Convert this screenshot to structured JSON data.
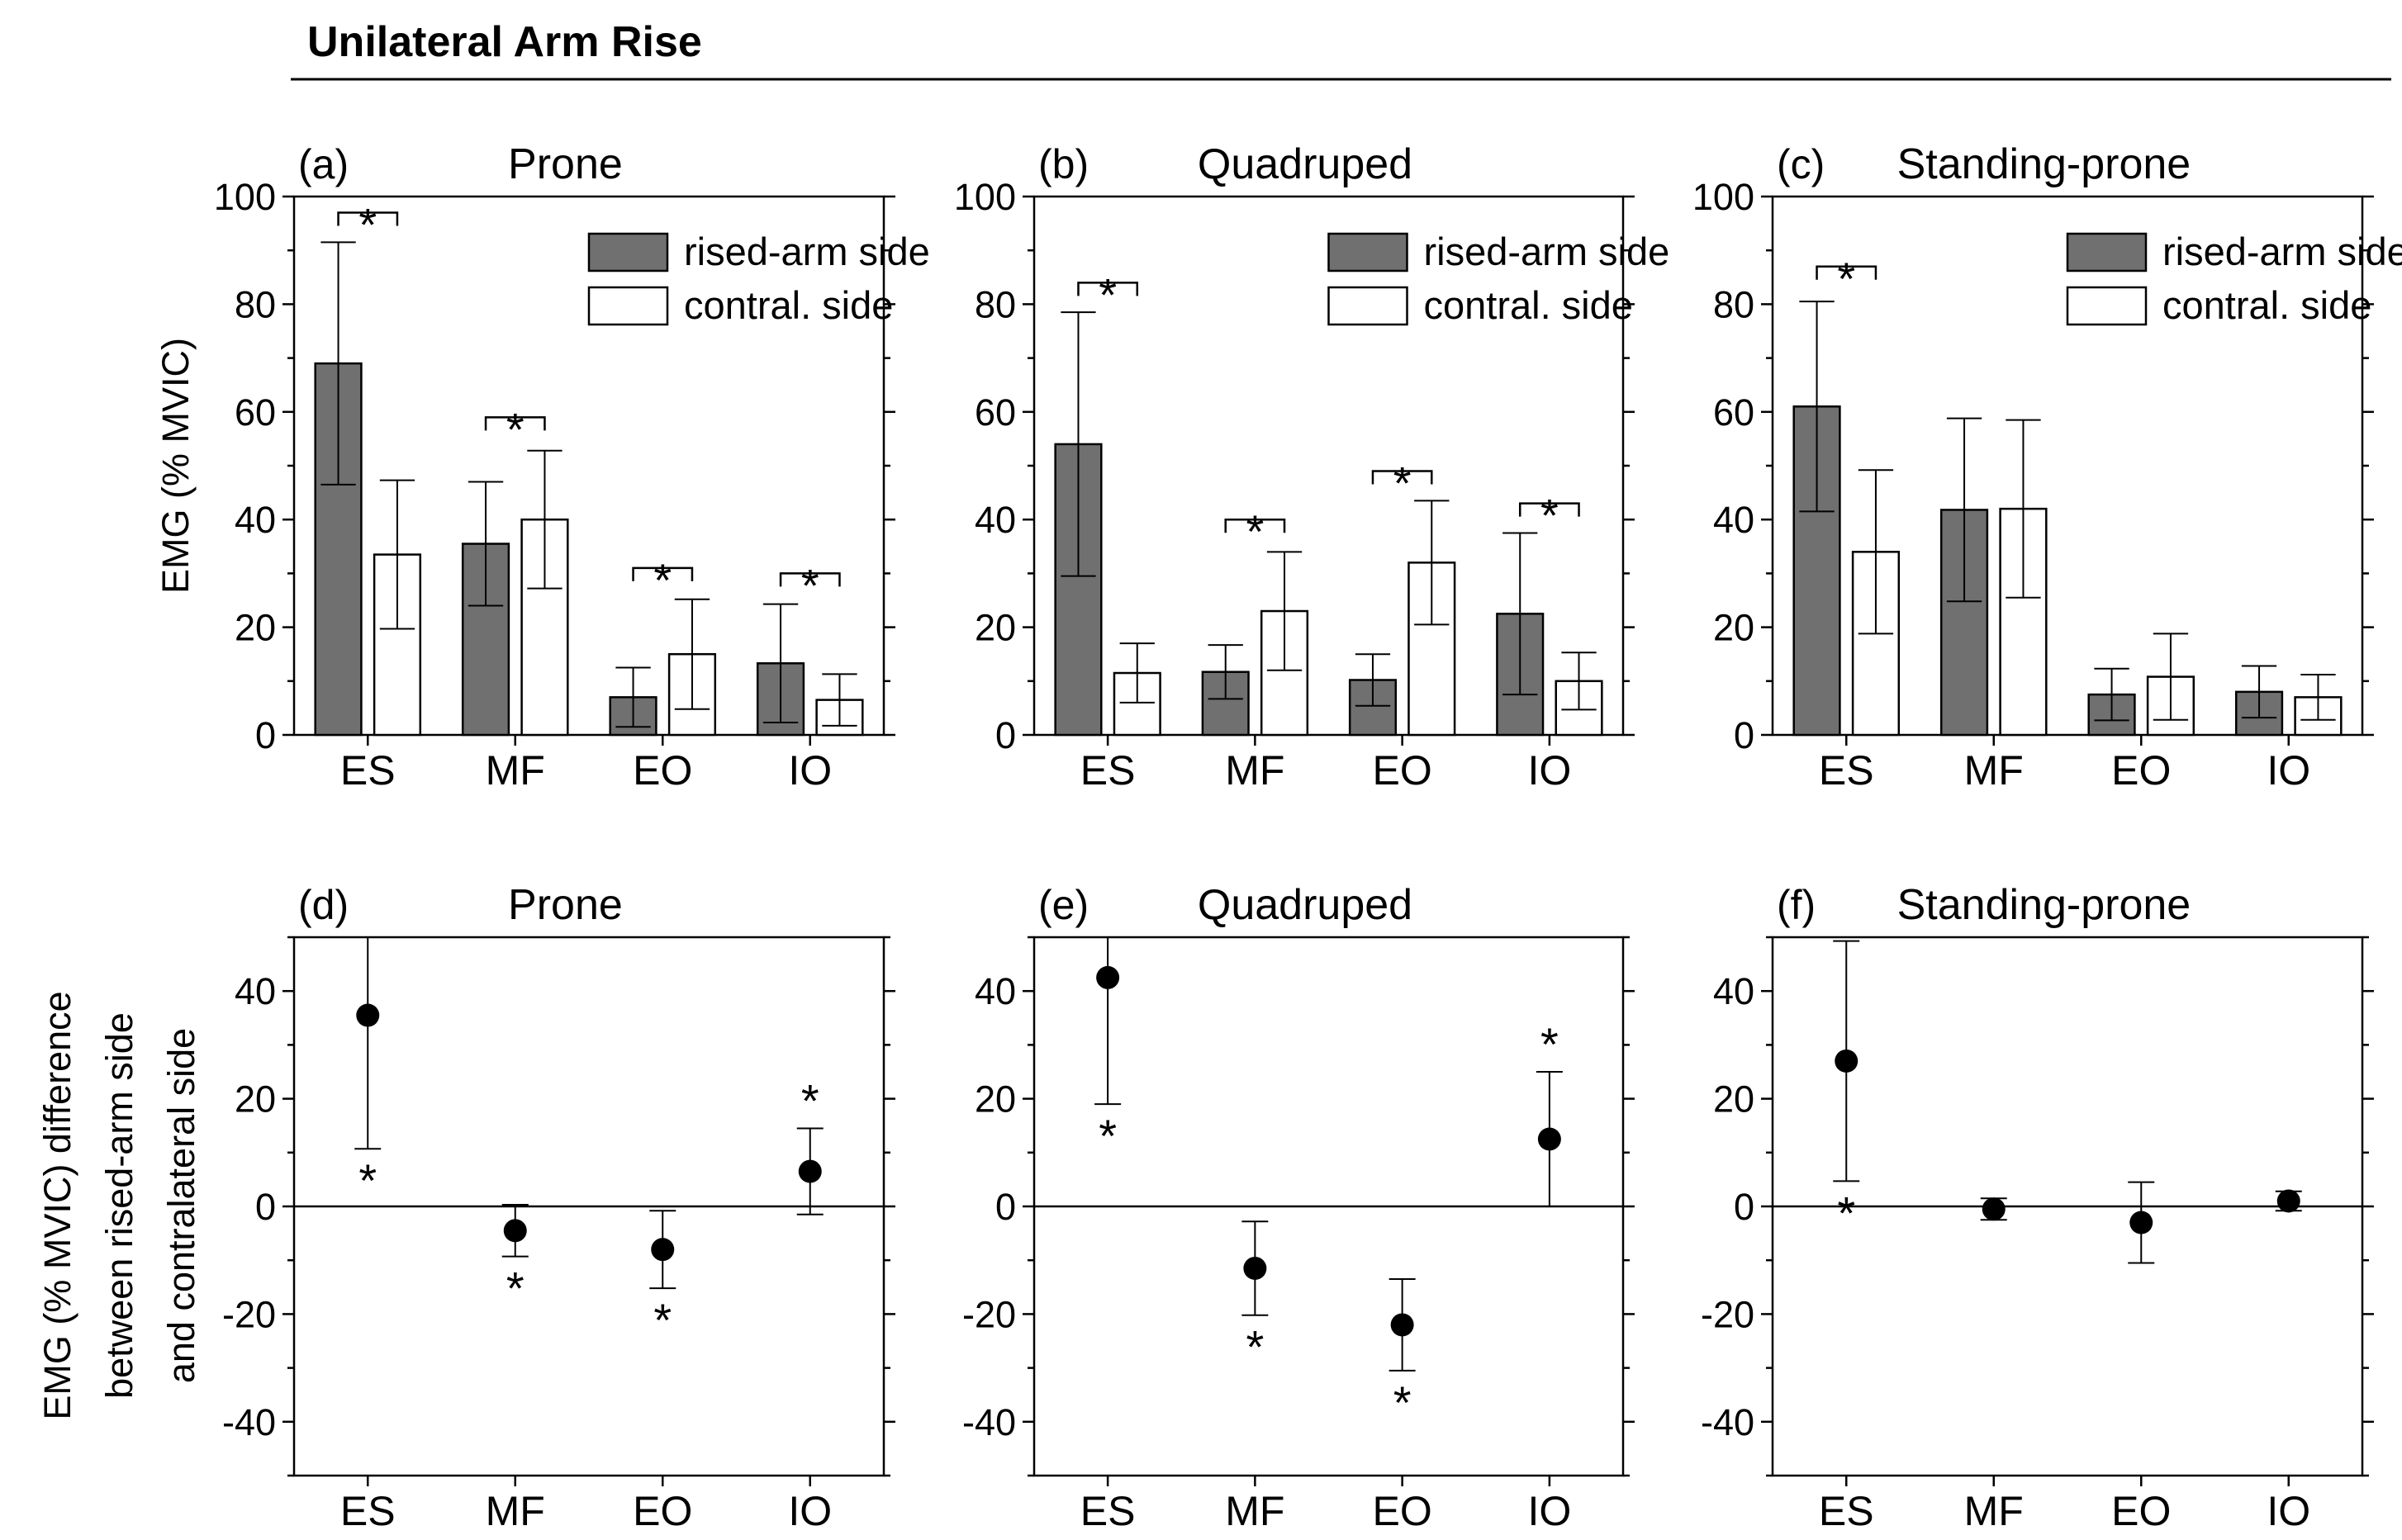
{
  "figure_title": "Unilateral Arm Rise",
  "legend": {
    "rised": "rised-arm side",
    "contral": "contral. side"
  },
  "y_label_top": "EMG  (% MVIC)",
  "y_label_bottom": [
    "EMG (% MVIC) difference",
    "between rised-arm side",
    "and contralateral side"
  ],
  "colors": {
    "rised": "#707070",
    "contral": "#ffffff",
    "ink": "#000000"
  },
  "chart_data": [
    {
      "type": "bar",
      "letter": "(a)",
      "title": "Prone",
      "categories": [
        "ES",
        "MF",
        "EO",
        "IO"
      ],
      "ylim": [
        0,
        100
      ],
      "yticks": [
        "0",
        "20",
        "40",
        "60",
        "80",
        "100"
      ],
      "series": [
        {
          "name": "rised-arm side",
          "values": [
            69,
            35.5,
            7,
            13.3
          ],
          "err": [
            22.5,
            11.5,
            5.5,
            11
          ]
        },
        {
          "name": "contral. side",
          "values": [
            33.5,
            40,
            15,
            6.5
          ],
          "err": [
            13.8,
            12.8,
            10.2,
            4.8
          ]
        }
      ],
      "significance": [
        {
          "category": "ES",
          "level": 97,
          "label": "*"
        },
        {
          "category": "MF",
          "level": 59,
          "label": "*"
        },
        {
          "category": "EO",
          "level": 31,
          "label": "*"
        },
        {
          "category": "IO",
          "level": 30,
          "label": "*"
        }
      ]
    },
    {
      "type": "bar",
      "letter": "(b)",
      "title": "Quadruped",
      "categories": [
        "ES",
        "MF",
        "EO",
        "IO"
      ],
      "ylim": [
        0,
        100
      ],
      "yticks": [
        "0",
        "20",
        "40",
        "60",
        "80",
        "100"
      ],
      "series": [
        {
          "name": "rised-arm side",
          "values": [
            54,
            11.7,
            10.2,
            22.5
          ],
          "err": [
            24.5,
            5,
            4.8,
            15
          ]
        },
        {
          "name": "contral. side",
          "values": [
            11.5,
            23,
            32,
            10
          ],
          "err": [
            5.5,
            11,
            11.5,
            5.3
          ]
        }
      ],
      "significance": [
        {
          "category": "ES",
          "level": 84,
          "label": "*"
        },
        {
          "category": "MF",
          "level": 40,
          "label": "*"
        },
        {
          "category": "EO",
          "level": 49,
          "label": "*"
        },
        {
          "category": "IO",
          "level": 43,
          "label": "*"
        }
      ]
    },
    {
      "type": "bar",
      "letter": "(c)",
      "title": "Standing-prone",
      "categories": [
        "ES",
        "MF",
        "EO",
        "IO"
      ],
      "ylim": [
        0,
        100
      ],
      "yticks": [
        "0",
        "20",
        "40",
        "60",
        "80",
        "100"
      ],
      "series": [
        {
          "name": "rised-arm side",
          "values": [
            61,
            41.8,
            7.5,
            8
          ],
          "err": [
            19.5,
            17,
            4.8,
            4.8
          ]
        },
        {
          "name": "contral. side",
          "values": [
            34,
            42,
            10.8,
            7
          ],
          "err": [
            15.2,
            16.5,
            8,
            4.2
          ]
        }
      ],
      "significance": [
        {
          "category": "ES",
          "level": 87,
          "label": "*"
        }
      ]
    },
    {
      "type": "scatter",
      "letter": "(d)",
      "title": "Prone",
      "categories": [
        "ES",
        "MF",
        "EO",
        "IO"
      ],
      "ylim": [
        -50,
        50
      ],
      "yticks": [
        "-40",
        "-20",
        "0",
        "20",
        "40"
      ],
      "values": [
        35.5,
        -4.5,
        -8,
        6.5
      ],
      "err": [
        24.8,
        4.8,
        7.2,
        8
      ],
      "significance": [
        {
          "category": "ES",
          "position": "below",
          "label": "*"
        },
        {
          "category": "MF",
          "position": "below",
          "label": "*"
        },
        {
          "category": "EO",
          "position": "below",
          "label": "*"
        },
        {
          "category": "IO",
          "position": "above",
          "label": "*"
        }
      ]
    },
    {
      "type": "scatter",
      "letter": "(e)",
      "title": "Quadruped",
      "categories": [
        "ES",
        "MF",
        "EO",
        "IO"
      ],
      "ylim": [
        -50,
        50
      ],
      "yticks": [
        "-40",
        "-20",
        "0",
        "20",
        "40"
      ],
      "values": [
        42.5,
        -11.5,
        -22,
        12.5
      ],
      "err": [
        23.5,
        8.7,
        8.5,
        12.5
      ],
      "significance": [
        {
          "category": "ES",
          "position": "below",
          "label": "*"
        },
        {
          "category": "MF",
          "position": "below",
          "label": "*"
        },
        {
          "category": "EO",
          "position": "below",
          "label": "*"
        },
        {
          "category": "IO",
          "position": "above",
          "label": "*"
        }
      ]
    },
    {
      "type": "scatter",
      "letter": "(f)",
      "title": "Standing-prone",
      "categories": [
        "ES",
        "MF",
        "EO",
        "IO"
      ],
      "ylim": [
        -50,
        50
      ],
      "yticks": [
        "-40",
        "-20",
        "0",
        "20",
        "40"
      ],
      "values": [
        27,
        -0.5,
        -3,
        1
      ],
      "err": [
        22.3,
        2,
        7.5,
        1.8
      ],
      "significance": [
        {
          "category": "ES",
          "position": "below",
          "label": "*"
        }
      ]
    }
  ]
}
